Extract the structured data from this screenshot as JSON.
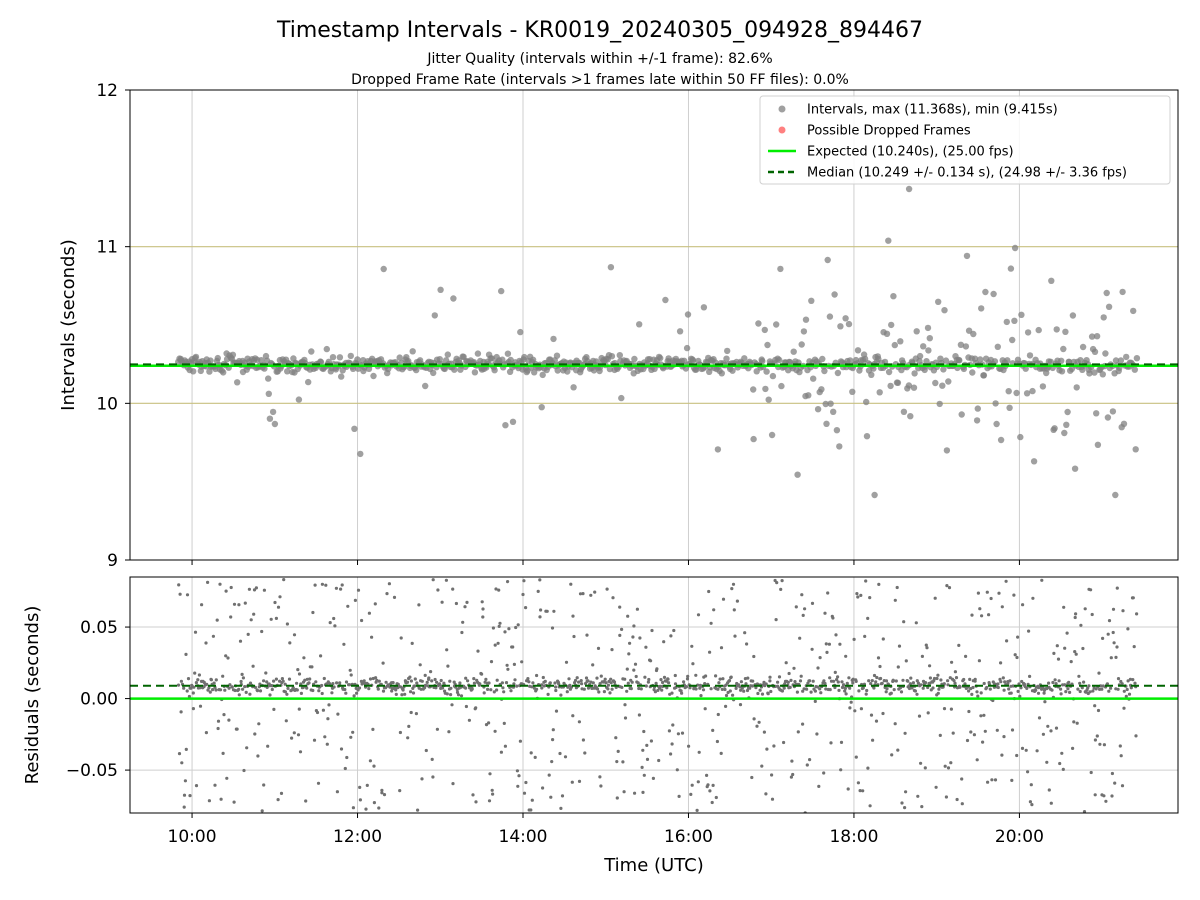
{
  "chart_data": [
    {
      "type": "scatter",
      "title": "Timestamp Intervals - KR0019_20240305_094928_894467",
      "subtitle_lines": [
        "Jitter Quality (intervals within +/-1 frame): 82.6%",
        "Dropped Frame Rate (intervals >1 frames late within 50 FF files): 0.0%"
      ],
      "xlabel": "",
      "ylabel": "Intervals (seconds)",
      "xlim": [
        "09:15",
        "21:55"
      ],
      "ylim": [
        9,
        12
      ],
      "yticks": [
        "9",
        "10",
        "11",
        "12"
      ],
      "xticks": [
        "10:00",
        "12:00",
        "14:00",
        "16:00",
        "18:00",
        "20:00"
      ],
      "grid": true,
      "legend_position": "top-right",
      "reference_lines": [
        {
          "name": "Expected (10.240s), (25.00 fps)",
          "y": 10.24,
          "color": "#00ee00",
          "style": "solid"
        },
        {
          "name": "Median (10.249 +/- 0.134 s), (24.98 +/- 3.36 fps)",
          "y": 10.249,
          "color": "#006400",
          "style": "dashed"
        }
      ],
      "tolerance_lines": [
        {
          "y": 10,
          "color": "#c8c080"
        },
        {
          "y": 11,
          "color": "#c8c080"
        }
      ],
      "series": [
        {
          "name": "Intervals, max (11.368s), min (9.415s)",
          "color": "#808080",
          "time_range": [
            "09:50",
            "21:25"
          ],
          "median": 10.249,
          "max": 11.368,
          "min": 9.415
        },
        {
          "name": "Possible Dropped Frames",
          "color": "#ff5555",
          "values": []
        }
      ]
    },
    {
      "type": "scatter",
      "title": "",
      "xlabel": "Time (UTC)",
      "ylabel": "Residuals (seconds)",
      "xlim": [
        "09:15",
        "21:55"
      ],
      "ylim": [
        -0.08,
        0.085
      ],
      "yticks": [
        "−0.05",
        "0.00",
        "0.05"
      ],
      "xticks": [
        "10:00",
        "12:00",
        "14:00",
        "16:00",
        "18:00",
        "20:00"
      ],
      "grid": true,
      "reference_lines": [
        {
          "y": 0.0,
          "color": "#00ee00",
          "style": "solid"
        },
        {
          "y": 0.009,
          "color": "#006400",
          "style": "dashed"
        }
      ],
      "series": [
        {
          "name": "",
          "color": "#707070",
          "time_range": [
            "09:50",
            "21:25"
          ]
        }
      ]
    }
  ]
}
